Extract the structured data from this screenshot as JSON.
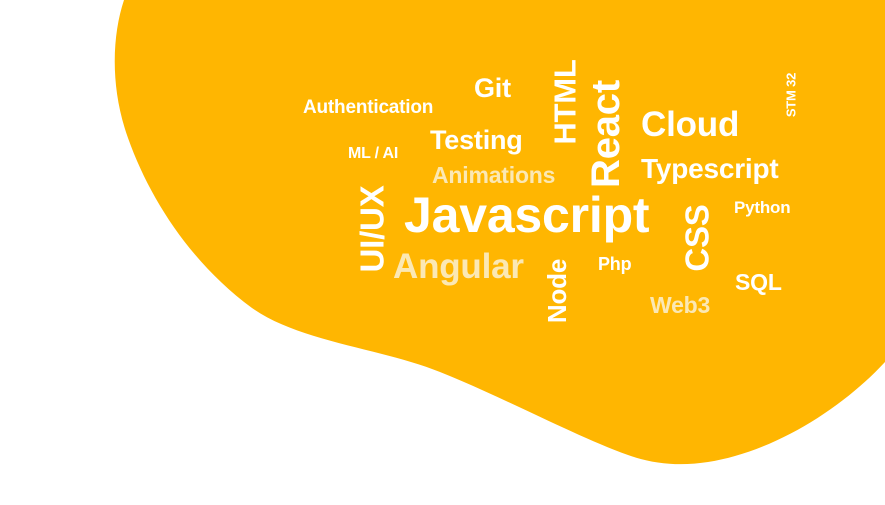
{
  "background_color": "#ffffff",
  "blob_color": "#ffb601",
  "text_colors": {
    "primary": "#ffffff",
    "secondary": "#fbe8b4"
  },
  "words": {
    "authentication": "Authentication",
    "git": "Git",
    "html": "HTML",
    "react": "React",
    "cloud": "Cloud",
    "stm32": "STM 32",
    "ml_ai": "ML / AI",
    "testing": "Testing",
    "animations": "Animations",
    "typescript": "Typescript",
    "ui_ux": "UI/UX",
    "javascript": "Javascript",
    "css": "CSS",
    "python": "Python",
    "angular": "Angular",
    "php": "Php",
    "node": "Node",
    "sql": "SQL",
    "web3": "Web3"
  }
}
